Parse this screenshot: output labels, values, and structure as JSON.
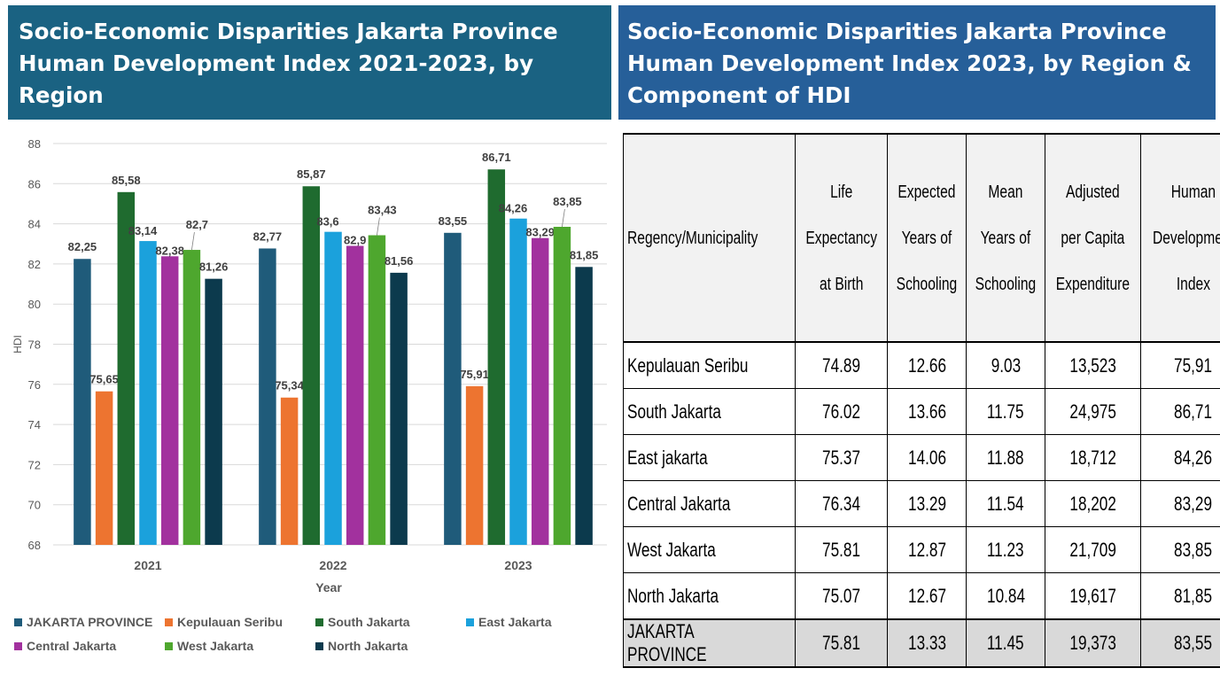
{
  "left_title": "Socio-Economic Disparities Jakarta Province Human Development Index 2021-2023, by Region",
  "right_title": "Socio-Economic Disparities Jakarta Province Human Development Index 2023, by Region & Component of HDI",
  "chart_data": {
    "type": "bar",
    "title": "",
    "xlabel": "Year",
    "ylabel": "HDI",
    "ylim": [
      68,
      88
    ],
    "yticks": [
      68,
      70,
      72,
      74,
      76,
      78,
      80,
      82,
      84,
      86,
      88
    ],
    "grid": true,
    "legend_position": "bottom",
    "categories": [
      "2021",
      "2022",
      "2023"
    ],
    "series": [
      {
        "name": "JAKARTA PROVINCE",
        "color": "#1f5b7a",
        "values": [
          82.25,
          82.77,
          83.55
        ],
        "labels": [
          "82,25",
          "82,77",
          "83,55"
        ]
      },
      {
        "name": "Kepulauan Seribu",
        "color": "#ed7430",
        "values": [
          75.65,
          75.34,
          75.91
        ],
        "labels": [
          "75,65",
          "75,34",
          "75,91"
        ]
      },
      {
        "name": "South Jakarta",
        "color": "#1f6b2f",
        "values": [
          85.58,
          85.87,
          86.71
        ],
        "labels": [
          "85,58",
          "85,87",
          "86,71"
        ]
      },
      {
        "name": "East Jakarta",
        "color": "#1ba1dc",
        "values": [
          83.14,
          83.6,
          84.26
        ],
        "labels": [
          "83,14",
          "83,6",
          "84,26"
        ]
      },
      {
        "name": "Central Jakarta",
        "color": "#a2319e",
        "values": [
          82.38,
          82.9,
          83.29
        ],
        "labels": [
          "82,38",
          "82,9",
          "83,29"
        ]
      },
      {
        "name": "West Jakarta",
        "color": "#4ea72e",
        "values": [
          82.7,
          83.43,
          83.85
        ],
        "labels": [
          "82,7",
          "83,43",
          "83,85"
        ]
      },
      {
        "name": "North Jakarta",
        "color": "#0c3a4d",
        "values": [
          81.26,
          81.56,
          81.85
        ],
        "labels": [
          "81,26",
          "81,56",
          "81,85"
        ]
      }
    ]
  },
  "table": {
    "headers": [
      "Regency/Municipality",
      "Life Expectancy at Birth",
      "Expected Years of Schooling",
      "Mean Years of Schooling",
      "Adjusted per Capita Expenditure",
      "Human Development Index"
    ],
    "header_lines": [
      [
        "Regency/Municipality"
      ],
      [
        "Life",
        "Expectancy",
        "at Birth"
      ],
      [
        "Expected",
        "Years of",
        "Schooling"
      ],
      [
        "Mean",
        "Years of",
        "Schooling"
      ],
      [
        "Adjusted",
        "per Capita",
        "Expenditure"
      ],
      [
        "Human",
        "Development",
        "Index"
      ]
    ],
    "rows": [
      [
        "Kepulauan Seribu",
        "74.89",
        "12.66",
        "9.03",
        "13,523",
        "75,91"
      ],
      [
        "South Jakarta",
        "76.02",
        "13.66",
        "11.75",
        "24,975",
        "86,71"
      ],
      [
        "East jakarta",
        "75.37",
        "14.06",
        "11.88",
        "18,712",
        "84,26"
      ],
      [
        "Central Jakarta",
        "76.34",
        "13.29",
        "11.54",
        "18,202",
        "83,29"
      ],
      [
        "West Jakarta",
        "75.81",
        "12.87",
        "11.23",
        "21,709",
        "83,85"
      ],
      [
        "North Jakarta",
        "75.07",
        "12.67",
        "10.84",
        "19,617",
        "81,85"
      ],
      [
        "JAKARTA PROVINCE",
        "75.81",
        "13.33",
        "11.45",
        "19,373",
        "83,55"
      ]
    ]
  }
}
